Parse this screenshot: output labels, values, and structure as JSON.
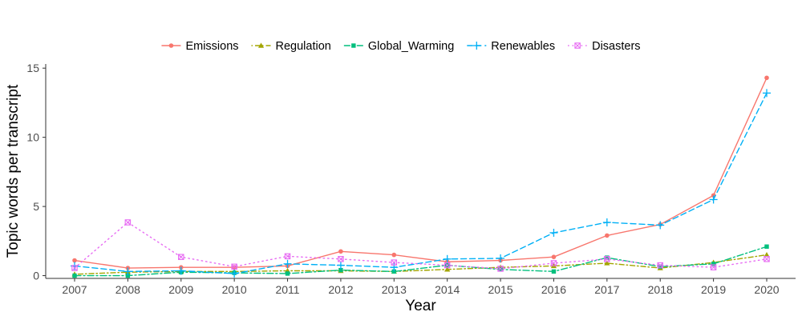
{
  "chart_data": {
    "type": "line",
    "title": "",
    "xlabel": "Year",
    "ylabel": "Topic words per transcript",
    "x": [
      2007,
      2008,
      2009,
      2010,
      2011,
      2012,
      2013,
      2014,
      2015,
      2016,
      2017,
      2018,
      2019,
      2020
    ],
    "xlim": [
      2007,
      2020
    ],
    "ylim": [
      -0.2,
      15.3
    ],
    "y_ticks": [
      0,
      5,
      10,
      15
    ],
    "grid": false,
    "legend_position": "top",
    "series": [
      {
        "name": "Emissions",
        "color": "#F8766D",
        "dash": "solid",
        "marker": "circle",
        "values": [
          1.1,
          0.55,
          0.6,
          0.6,
          0.7,
          1.75,
          1.5,
          1.0,
          1.1,
          1.35,
          2.9,
          3.7,
          5.8,
          14.3
        ]
      },
      {
        "name": "Regulation",
        "color": "#A3A500",
        "dash": "dotdash",
        "marker": "triangle",
        "values": [
          0.1,
          0.25,
          0.3,
          0.3,
          0.35,
          0.35,
          0.3,
          0.45,
          0.6,
          0.7,
          0.9,
          0.55,
          0.95,
          1.5
        ]
      },
      {
        "name": "Global_Warming",
        "color": "#00BF7D",
        "dash": "dashdot",
        "marker": "square",
        "values": [
          0.0,
          0.0,
          0.25,
          0.2,
          0.15,
          0.4,
          0.3,
          0.75,
          0.45,
          0.3,
          1.3,
          0.65,
          0.85,
          2.1
        ]
      },
      {
        "name": "Renewables",
        "color": "#00B0F6",
        "dash": "dashed",
        "marker": "plus",
        "values": [
          0.7,
          0.3,
          0.35,
          0.15,
          0.85,
          0.75,
          0.6,
          1.2,
          1.25,
          3.1,
          3.85,
          3.65,
          5.5,
          13.2
        ]
      },
      {
        "name": "Disasters",
        "color": "#E76BF3",
        "dash": "dotted",
        "marker": "boxx",
        "values": [
          0.55,
          3.85,
          1.35,
          0.65,
          1.4,
          1.2,
          0.95,
          0.75,
          0.5,
          0.9,
          1.2,
          0.75,
          0.6,
          1.2
        ]
      }
    ]
  }
}
